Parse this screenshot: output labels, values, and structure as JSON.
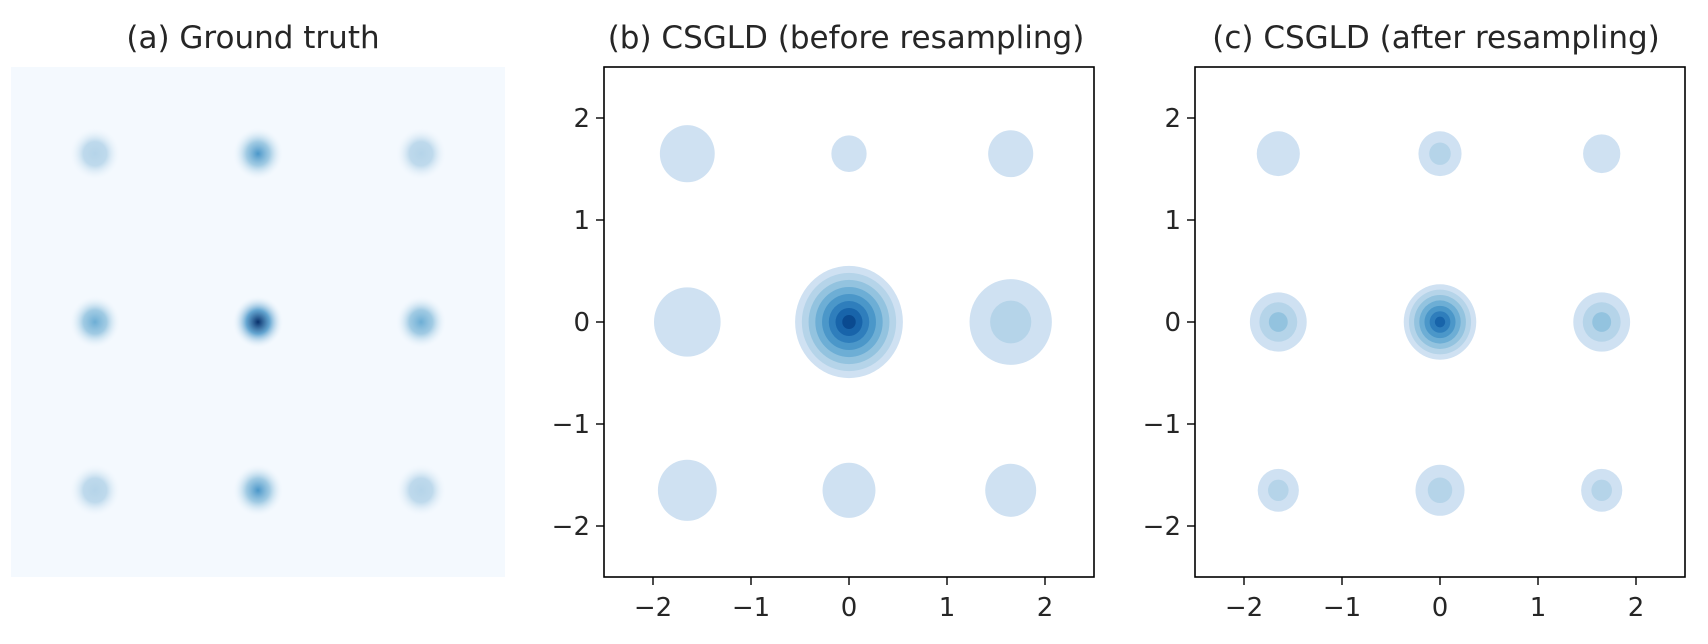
{
  "chart_data": [
    {
      "type": "heatmap",
      "title": "(a) Ground truth",
      "axes_visible": false,
      "xlim": [
        -2.5,
        2.5
      ],
      "ylim": [
        -2.5,
        2.5
      ],
      "colormap": "Blues",
      "modes": [
        {
          "x": -1.65,
          "y": 1.65,
          "weight": 0.18
        },
        {
          "x": 0.0,
          "y": 1.65,
          "weight": 0.45
        },
        {
          "x": 1.65,
          "y": 1.65,
          "weight": 0.13
        },
        {
          "x": -1.65,
          "y": 0.0,
          "weight": 0.42
        },
        {
          "x": 0.0,
          "y": 0.0,
          "weight": 1.0
        },
        {
          "x": 1.65,
          "y": 0.0,
          "weight": 0.42
        },
        {
          "x": -1.65,
          "y": -1.65,
          "weight": 0.16
        },
        {
          "x": 0.0,
          "y": -1.65,
          "weight": 0.45
        },
        {
          "x": 1.65,
          "y": -1.65,
          "weight": 0.13
        }
      ]
    },
    {
      "type": "contour",
      "title": "(b) CSGLD (before resampling)",
      "xlim": [
        -2.5,
        2.5
      ],
      "ylim": [
        -2.5,
        2.5
      ],
      "xticks": [
        -2,
        -1,
        0,
        1,
        2
      ],
      "yticks": [
        -2,
        -1,
        0,
        1,
        2
      ],
      "xtick_labels": [
        "−2",
        "−1",
        "0",
        "1",
        "2"
      ],
      "ytick_labels": [
        "−2",
        "−1",
        "0",
        "1",
        "2"
      ],
      "colormap": "Blues",
      "modes": [
        {
          "x": -1.65,
          "y": 1.65,
          "extent": 0.28,
          "levels": 1
        },
        {
          "x": 0.0,
          "y": 1.65,
          "extent": 0.18,
          "levels": 1
        },
        {
          "x": 1.65,
          "y": 1.65,
          "extent": 0.23,
          "levels": 1
        },
        {
          "x": -1.65,
          "y": 0.0,
          "extent": 0.34,
          "levels": 1
        },
        {
          "x": 0.0,
          "y": 0.0,
          "extent": 0.55,
          "levels": 8
        },
        {
          "x": 1.65,
          "y": 0.0,
          "extent": 0.42,
          "levels": 2
        },
        {
          "x": -1.65,
          "y": -1.65,
          "extent": 0.3,
          "levels": 1
        },
        {
          "x": 0.0,
          "y": -1.65,
          "extent": 0.27,
          "levels": 1
        },
        {
          "x": 1.65,
          "y": -1.65,
          "extent": 0.26,
          "levels": 1
        }
      ]
    },
    {
      "type": "contour",
      "title": "(c) CSGLD (after resampling)",
      "xlim": [
        -2.5,
        2.5
      ],
      "ylim": [
        -2.5,
        2.5
      ],
      "xticks": [
        -2,
        -1,
        0,
        1,
        2
      ],
      "yticks": [
        -2,
        -1,
        0,
        1,
        2
      ],
      "xtick_labels": [
        "−2",
        "−1",
        "0",
        "1",
        "2"
      ],
      "ytick_labels": [
        "−2",
        "−1",
        "0",
        "1",
        "2"
      ],
      "colormap": "Blues",
      "modes": [
        {
          "x": -1.65,
          "y": 1.65,
          "extent": 0.22,
          "levels": 1
        },
        {
          "x": 0.0,
          "y": 1.65,
          "extent": 0.22,
          "levels": 2
        },
        {
          "x": 1.65,
          "y": 1.65,
          "extent": 0.19,
          "levels": 1
        },
        {
          "x": -1.65,
          "y": 0.0,
          "extent": 0.29,
          "levels": 3
        },
        {
          "x": 0.0,
          "y": 0.0,
          "extent": 0.37,
          "levels": 7
        },
        {
          "x": 1.65,
          "y": 0.0,
          "extent": 0.29,
          "levels": 3
        },
        {
          "x": -1.65,
          "y": -1.65,
          "extent": 0.21,
          "levels": 2
        },
        {
          "x": 0.0,
          "y": -1.65,
          "extent": 0.25,
          "levels": 2
        },
        {
          "x": 1.65,
          "y": -1.65,
          "extent": 0.21,
          "levels": 2
        }
      ]
    }
  ],
  "colors": {
    "blues": [
      "#cfe1f2",
      "#b5d4e9",
      "#93c3df",
      "#6daed5",
      "#4b97c9",
      "#2f7ebc",
      "#1864aa",
      "#0a4a90",
      "#08306b"
    ],
    "background_a": "#f4f9fe",
    "axis": "#000000",
    "text": "#262626"
  }
}
